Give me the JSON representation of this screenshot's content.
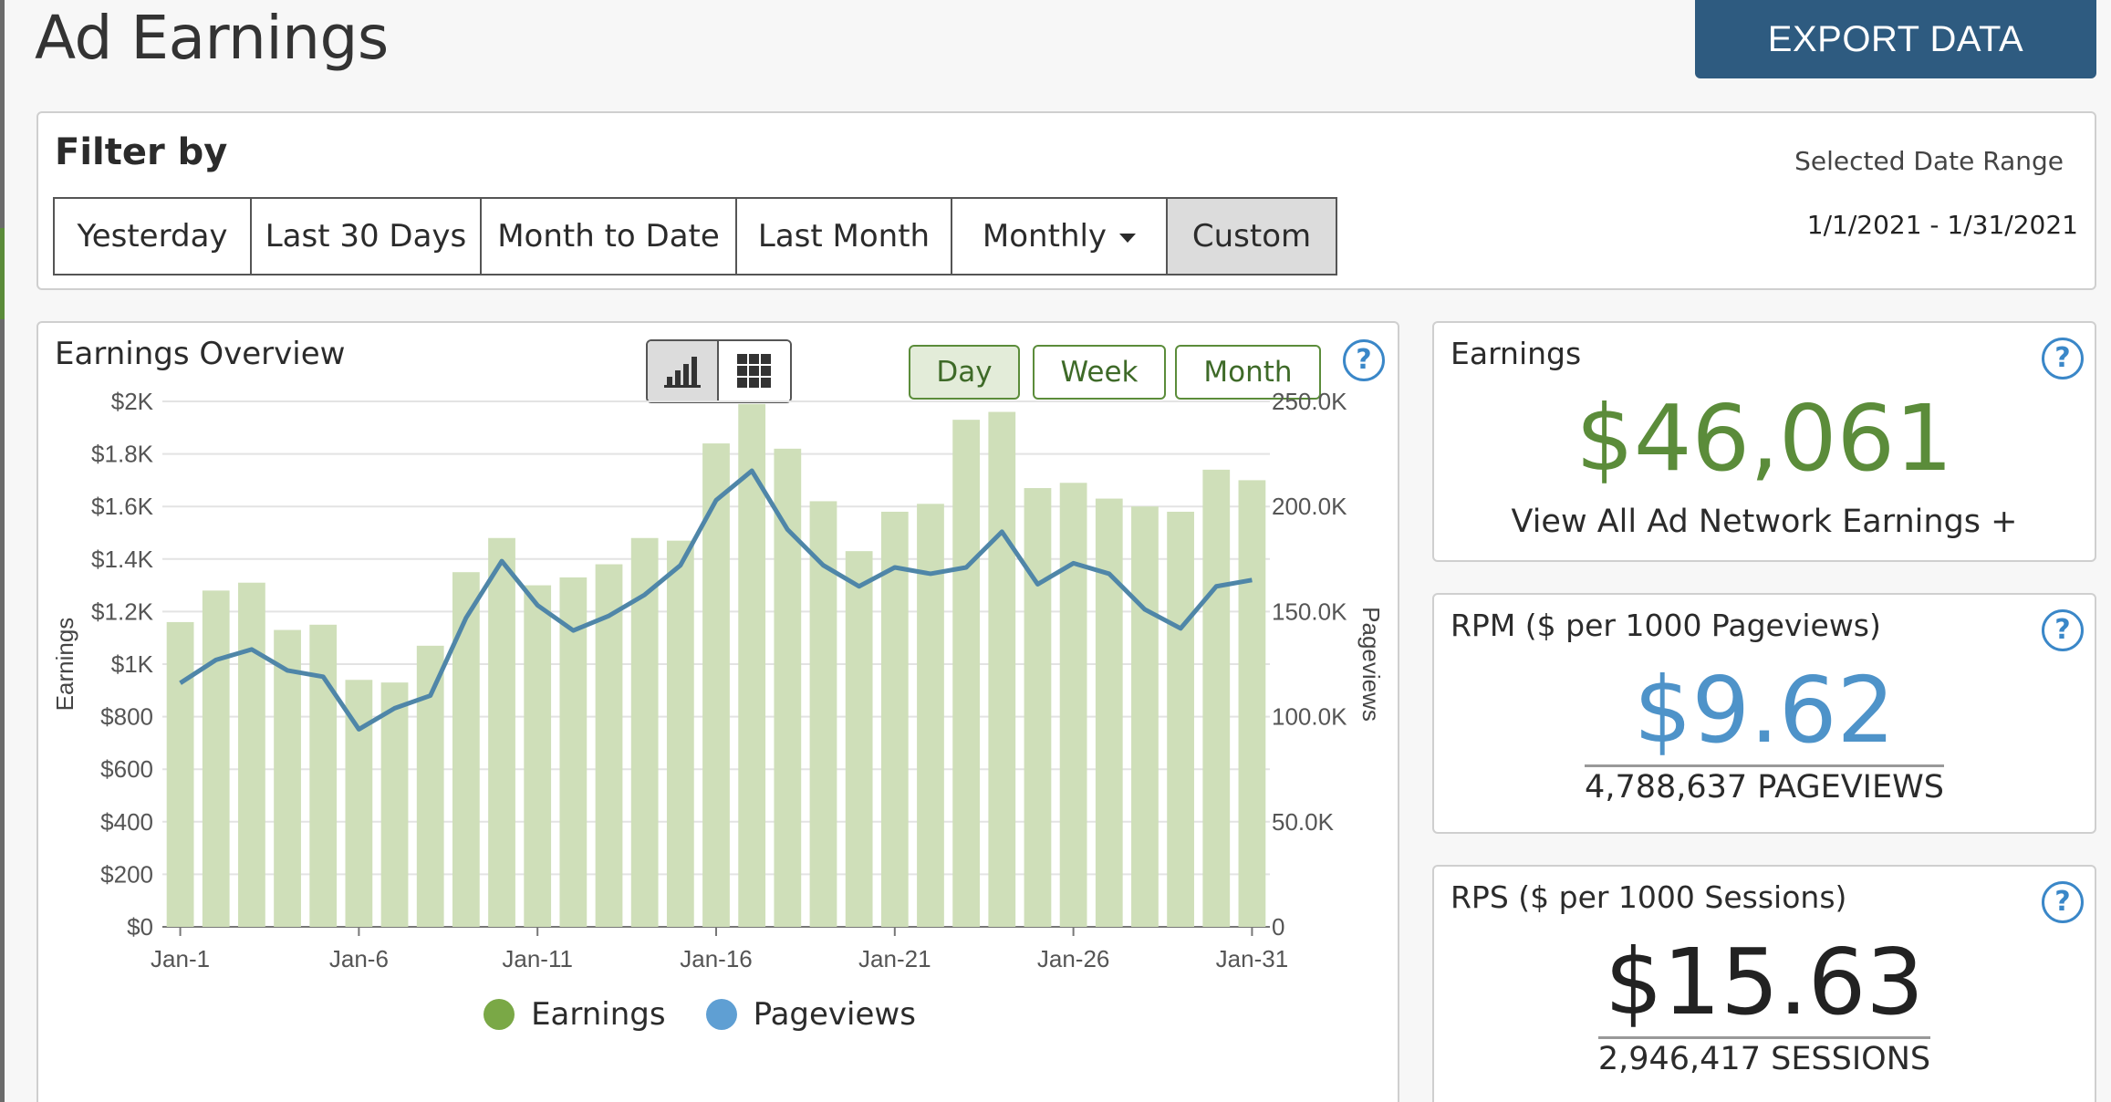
{
  "header": {
    "title": "Ad Earnings",
    "export_label": "EXPORT DATA"
  },
  "filter": {
    "title": "Filter by",
    "buttons": [
      "Yesterday",
      "Last 30 Days",
      "Month to Date",
      "Last Month",
      "Monthly",
      "Custom"
    ],
    "active": "Custom",
    "range_label": "Selected Date Range",
    "range_value": "1/1/2021 - 1/31/2021"
  },
  "overview": {
    "title": "Earnings Overview",
    "granularity": [
      "Day",
      "Week",
      "Month"
    ],
    "active_granularity": "Day",
    "help_icon": "question-circle-icon",
    "view_icons": [
      "bar-chart-icon",
      "grid-icon"
    ]
  },
  "colors": {
    "bar": "#cfdfb9",
    "line": "#4f86a8",
    "earnings_green": "#5b8c3a",
    "rpm_blue": "#4e93c9",
    "legend_earnings": "#7aa846",
    "legend_pageviews": "#5f9fd3",
    "export_bg": "#2e5b80"
  },
  "chart_data": {
    "type": "bar",
    "title": "",
    "xlabel": "",
    "ylabel": "Earnings",
    "y2label": "Pageviews",
    "categories": [
      "Jan-1",
      "Jan-2",
      "Jan-3",
      "Jan-4",
      "Jan-5",
      "Jan-6",
      "Jan-7",
      "Jan-8",
      "Jan-9",
      "Jan-10",
      "Jan-11",
      "Jan-12",
      "Jan-13",
      "Jan-14",
      "Jan-15",
      "Jan-16",
      "Jan-17",
      "Jan-18",
      "Jan-19",
      "Jan-20",
      "Jan-21",
      "Jan-22",
      "Jan-23",
      "Jan-24",
      "Jan-25",
      "Jan-26",
      "Jan-27",
      "Jan-28",
      "Jan-29",
      "Jan-30",
      "Jan-31"
    ],
    "x_tick_labels": [
      "Jan-1",
      "Jan-6",
      "Jan-11",
      "Jan-16",
      "Jan-21",
      "Jan-26",
      "Jan-31"
    ],
    "ylim": [
      0,
      2000
    ],
    "y_tick_labels": [
      "$0",
      "$200",
      "$400",
      "$600",
      "$800",
      "$1K",
      "$1.2K",
      "$1.4K",
      "$1.6K",
      "$1.8K",
      "$2K"
    ],
    "y2lim": [
      0,
      250000
    ],
    "y2_tick_labels": [
      "0",
      "50.0K",
      "100.0K",
      "150.0K",
      "200.0K",
      "250.0K"
    ],
    "series": [
      {
        "name": "Earnings",
        "type": "bar",
        "axis": "left",
        "values": [
          1160,
          1280,
          1310,
          1130,
          1150,
          940,
          930,
          1070,
          1350,
          1480,
          1300,
          1330,
          1380,
          1480,
          1470,
          1840,
          1990,
          1820,
          1620,
          1430,
          1580,
          1610,
          1930,
          1960,
          1670,
          1690,
          1630,
          1600,
          1580,
          1740,
          1700
        ]
      },
      {
        "name": "Pageviews",
        "type": "line",
        "axis": "right",
        "values": [
          116000,
          127000,
          132000,
          122000,
          119000,
          94000,
          104000,
          110000,
          147000,
          174000,
          153000,
          141000,
          148000,
          158000,
          172000,
          203000,
          217000,
          189000,
          172000,
          162000,
          171000,
          168000,
          171000,
          188000,
          163000,
          173000,
          168000,
          151000,
          142000,
          162000,
          165000
        ]
      }
    ],
    "legend_position": "bottom",
    "grid": true
  },
  "stats": {
    "earnings": {
      "label": "Earnings",
      "value": "$46,061",
      "link": "View All Ad Network Earnings +"
    },
    "rpm": {
      "label": "RPM ($ per 1000 Pageviews)",
      "value": "$9.62",
      "sub": "4,788,637 PAGEVIEWS"
    },
    "rps": {
      "label": "RPS ($ per 1000 Sessions)",
      "value": "$15.63",
      "sub": "2,946,417 SESSIONS"
    }
  }
}
